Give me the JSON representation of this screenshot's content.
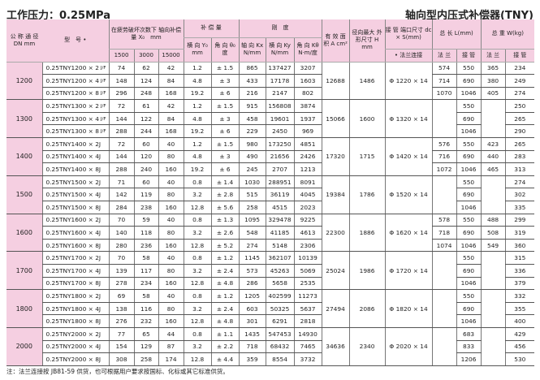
{
  "title_left": "工作压力：0.25MPa",
  "title_right": "轴向型内压式补偿器(TNY)",
  "headers": {
    "dn": "公 称 通 径 DN mm",
    "model": "型　号",
    "model_mark": "•",
    "axial_comp": "在疲劳破坏次数下 轴向补偿量 X₀　mm",
    "cycles": [
      "1500",
      "3000",
      "15000"
    ],
    "comp": "补 偿 量",
    "lateral": "横 向 Y₀ mm",
    "angular": "角 向 θ₀ 度",
    "stiffness": "刚　度",
    "kx": "轴 向 Kx N/mm",
    "ky": "横 向 Ky N/mm",
    "kt": "角 向 Kθ N·m/度",
    "area": "有 效 面 积 A cm²",
    "h": "径向最大 外形尺寸 H mm",
    "pipe": "接 管 端口尺寸 dc × S(mm)",
    "pipe_sub": "• 法兰连接",
    "length": "总 长 L(mm)",
    "weight": "总 重 W(kg)",
    "flange": "法 兰",
    "weld": "接 管"
  },
  "groups": [
    {
      "dn": "1200",
      "area": "12688",
      "h": "1486",
      "pipe": "Φ 1220 × 14",
      "rows": [
        [
          "0.25TNY1200 × 2",
          "J/F",
          "74",
          "62",
          "42",
          "1.2",
          "± 1.5",
          "865",
          "137427",
          "3207",
          "574",
          "550",
          "365",
          "234"
        ],
        [
          "0.25TNY1200 × 4",
          "J/F",
          "148",
          "124",
          "84",
          "4.8",
          "± 3",
          "433",
          "17178",
          "1603",
          "714",
          "690",
          "380",
          "249"
        ],
        [
          "0.25TNY1200 × 8",
          "J/F",
          "296",
          "248",
          "168",
          "19.2",
          "± 6",
          "216",
          "2147",
          "802",
          "1070",
          "1046",
          "405",
          "274"
        ]
      ]
    },
    {
      "dn": "1300",
      "area": "15066",
      "h": "1600",
      "pipe": "Φ 1320 × 14",
      "rows": [
        [
          "0.25TNY1300 × 2",
          "J/F",
          "72",
          "61",
          "42",
          "1.2",
          "± 1.5",
          "915",
          "156808",
          "3874",
          "",
          "550",
          "",
          "250"
        ],
        [
          "0.25TNY1300 × 4",
          "J/F",
          "144",
          "122",
          "84",
          "4.8",
          "± 3",
          "458",
          "19601",
          "1937",
          "",
          "690",
          "",
          "265"
        ],
        [
          "0.25TNY1300 × 8",
          "J/F",
          "288",
          "244",
          "168",
          "19.2",
          "± 6",
          "229",
          "2450",
          "969",
          "",
          "1046",
          "",
          "290"
        ]
      ]
    },
    {
      "dn": "1400",
      "area": "17320",
      "h": "1715",
      "pipe": "Φ 1420 × 14",
      "rows": [
        [
          "0.25TNY1400 × 2J",
          "",
          "72",
          "60",
          "40",
          "1.2",
          "± 1.5",
          "980",
          "173250",
          "4851",
          "576",
          "550",
          "423",
          "265"
        ],
        [
          "0.25TNY1400 × 4J",
          "",
          "144",
          "120",
          "80",
          "4.8",
          "± 3",
          "490",
          "21656",
          "2426",
          "716",
          "690",
          "440",
          "283"
        ],
        [
          "0.25TNY1400 × 8J",
          "",
          "288",
          "240",
          "160",
          "19.2",
          "± 6",
          "245",
          "2707",
          "1213",
          "1072",
          "1046",
          "465",
          "313"
        ]
      ]
    },
    {
      "dn": "1500",
      "area": "19384",
      "h": "1786",
      "pipe": "Φ 1520 × 14",
      "rows": [
        [
          "0.25TNY1500 × 2J",
          "",
          "71",
          "60",
          "40",
          "0.8",
          "± 1.4",
          "1030",
          "288951",
          "8091",
          "",
          "550",
          "",
          "274"
        ],
        [
          "0.25TNY1500 × 4J",
          "",
          "142",
          "119",
          "80",
          "3.2",
          "± 2.8",
          "515",
          "36119",
          "4045",
          "",
          "690",
          "",
          "302"
        ],
        [
          "0.25TNY1500 × 8J",
          "",
          "284",
          "238",
          "160",
          "12.8",
          "± 5.6",
          "258",
          "4515",
          "2023",
          "",
          "1046",
          "",
          "335"
        ]
      ]
    },
    {
      "dn": "1600",
      "area": "22300",
      "h": "1886",
      "pipe": "Φ 1620 × 14",
      "rows": [
        [
          "0.25TNY1600 × 2J",
          "",
          "70",
          "59",
          "40",
          "0.8",
          "± 1.3",
          "1095",
          "329478",
          "9225",
          "578",
          "550",
          "488",
          "299"
        ],
        [
          "0.25TNY1600 × 4J",
          "",
          "140",
          "118",
          "80",
          "3.2",
          "± 2.6",
          "548",
          "41185",
          "4613",
          "718",
          "690",
          "508",
          "319"
        ],
        [
          "0.25TNY1600 × 8J",
          "",
          "280",
          "236",
          "160",
          "12.8",
          "± 5.2",
          "274",
          "5148",
          "2306",
          "1074",
          "1046",
          "549",
          "360"
        ]
      ]
    },
    {
      "dn": "1700",
      "area": "25024",
      "h": "1986",
      "pipe": "Φ 1720 × 14",
      "rows": [
        [
          "0.25TNY1700 × 2J",
          "",
          "70",
          "58",
          "40",
          "0.8",
          "± 1.2",
          "1145",
          "362107",
          "10139",
          "",
          "550",
          "",
          "315"
        ],
        [
          "0.25TNY1700 × 4J",
          "",
          "139",
          "117",
          "80",
          "3.2",
          "± 2.4",
          "573",
          "45263",
          "5069",
          "",
          "690",
          "",
          "336"
        ],
        [
          "0.25TNY1700 × 8J",
          "",
          "278",
          "234",
          "160",
          "12.8",
          "± 4.8",
          "286",
          "5658",
          "2535",
          "",
          "1046",
          "",
          "379"
        ]
      ]
    },
    {
      "dn": "1800",
      "area": "27494",
      "h": "2086",
      "pipe": "Φ 1820 × 14",
      "rows": [
        [
          "0.25TNY1800 × 2J",
          "",
          "69",
          "58",
          "40",
          "0.8",
          "± 1.2",
          "1205",
          "402599",
          "11273",
          "",
          "550",
          "",
          "332"
        ],
        [
          "0.25TNY1800 × 4J",
          "",
          "138",
          "116",
          "80",
          "3.2",
          "± 2.4",
          "603",
          "50325",
          "5637",
          "",
          "690",
          "",
          "355"
        ],
        [
          "0.25TNY1800 × 8J",
          "",
          "276",
          "232",
          "160",
          "12.8",
          "± 4.8",
          "301",
          "6291",
          "2818",
          "",
          "1046",
          "",
          "400"
        ]
      ]
    },
    {
      "dn": "2000",
      "area": "34636",
      "h": "2340",
      "pipe": "Φ 2020 × 14",
      "rows": [
        [
          "0.25TNY2000 × 2J",
          "",
          "77",
          "65",
          "44",
          "0.8",
          "± 1.1",
          "1435",
          "547453",
          "14930",
          "",
          "683",
          "",
          "429"
        ],
        [
          "0.25TNY2000 × 4J",
          "",
          "154",
          "129",
          "87",
          "3.2",
          "± 2.2",
          "718",
          "68432",
          "7465",
          "",
          "833",
          "",
          "456"
        ],
        [
          "0.25TNY2000 × 8J",
          "",
          "308",
          "258",
          "174",
          "12.8",
          "± 4.4",
          "359",
          "8554",
          "3732",
          "",
          "1206",
          "",
          "530"
        ]
      ]
    }
  ],
  "note": "注：法兰连接按 JB81-59 供货，也可根据用户要求按国标、化标或其它标准供货。"
}
